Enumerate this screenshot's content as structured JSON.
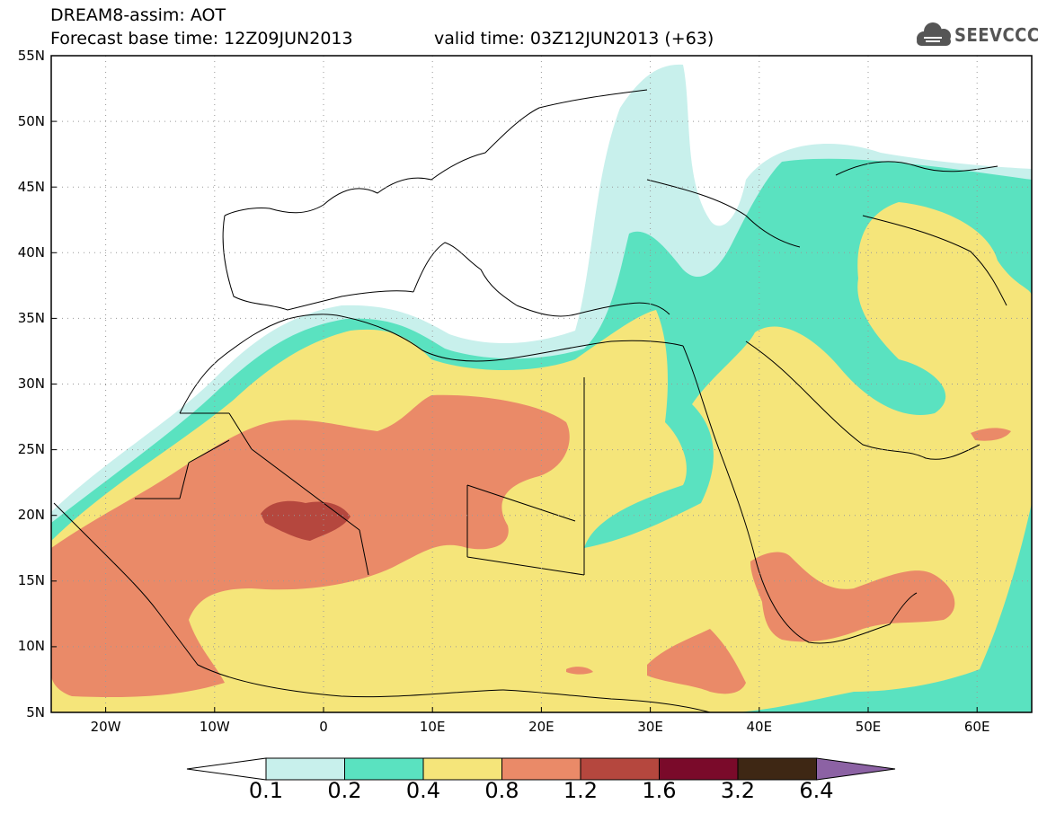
{
  "title": {
    "line1": "DREAM8-assim: AOT",
    "line2": "Forecast base time: 12Z09JUN2013",
    "valid": "valid time: 03Z12JUN2013 (+63)"
  },
  "logo": {
    "icon": "cloud-icon",
    "text": "SEEVCCC"
  },
  "map": {
    "lon_range": [
      -25,
      65
    ],
    "lat_range": [
      5,
      55
    ],
    "lat_labels": [
      "55N",
      "50N",
      "45N",
      "40N",
      "35N",
      "30N",
      "25N",
      "20N",
      "15N",
      "10N",
      "5N"
    ],
    "lon_labels": [
      "20W",
      "10W",
      "0",
      "10E",
      "20E",
      "30E",
      "40E",
      "50E",
      "60E"
    ]
  },
  "colorbar": {
    "levels": [
      "0.1",
      "0.2",
      "0.4",
      "0.8",
      "1.2",
      "1.6",
      "3.2",
      "6.4"
    ],
    "colors": [
      "#c8f0ec",
      "#5ae2c0",
      "#f5e57a",
      "#ea8a68",
      "#b5473e",
      "#7a0a2a",
      "#3e2714",
      "#8c62a4"
    ]
  }
}
